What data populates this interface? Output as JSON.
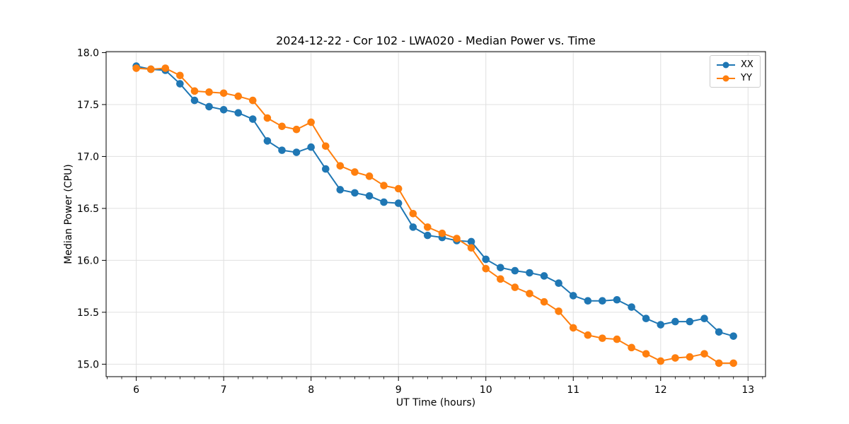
{
  "figure": {
    "background": "#ffffff",
    "axes_edge_color": "#000000",
    "grid_color": "#e0e0e0"
  },
  "chart_data": {
    "type": "line",
    "title": "2024-12-22 - Cor 102 - LWA020 - Median Power vs. Time",
    "xlabel": "UT Time (hours)",
    "ylabel": "Median Power (CPU)",
    "xlim": [
      5.655,
      13.2
    ],
    "ylim": [
      14.88,
      18.01
    ],
    "x_ticks": [
      6,
      7,
      8,
      9,
      10,
      11,
      12,
      13
    ],
    "x_tick_labels": [
      "6",
      "7",
      "8",
      "9",
      "10",
      "11",
      "12",
      "13"
    ],
    "y_ticks": [
      15.0,
      15.5,
      16.0,
      16.5,
      17.0,
      17.5,
      18.0
    ],
    "y_tick_labels": [
      "15.0",
      "15.5",
      "16.0",
      "16.5",
      "17.0",
      "17.5",
      "18.0"
    ],
    "minor_x_tick_step_hours": 0.1667,
    "grid": true,
    "legend_position": "upper right",
    "x": [
      6.0,
      6.167,
      6.333,
      6.5,
      6.667,
      6.833,
      7.0,
      7.167,
      7.333,
      7.5,
      7.667,
      7.833,
      8.0,
      8.167,
      8.333,
      8.5,
      8.667,
      8.833,
      9.0,
      9.167,
      9.333,
      9.5,
      9.667,
      9.833,
      10.0,
      10.167,
      10.333,
      10.5,
      10.667,
      10.833,
      11.0,
      11.167,
      11.333,
      11.5,
      11.667,
      11.833,
      12.0,
      12.167,
      12.333,
      12.5,
      12.667,
      12.833
    ],
    "series": [
      {
        "name": "XX",
        "color": "#1f77b4",
        "values": [
          17.87,
          17.84,
          17.83,
          17.7,
          17.54,
          17.48,
          17.45,
          17.42,
          17.36,
          17.15,
          17.06,
          17.04,
          17.09,
          16.88,
          16.68,
          16.65,
          16.62,
          16.56,
          16.55,
          16.32,
          16.24,
          16.22,
          16.19,
          16.18,
          16.01,
          15.93,
          15.9,
          15.88,
          15.85,
          15.78,
          15.66,
          15.61,
          15.61,
          15.62,
          15.55,
          15.44,
          15.38,
          15.41,
          15.41,
          15.44,
          15.31,
          15.27
        ]
      },
      {
        "name": "YY",
        "color": "#ff7f0e",
        "values": [
          17.85,
          17.84,
          17.85,
          17.78,
          17.63,
          17.62,
          17.61,
          17.58,
          17.54,
          17.37,
          17.29,
          17.26,
          17.33,
          17.1,
          16.91,
          16.85,
          16.81,
          16.72,
          16.69,
          16.45,
          16.32,
          16.26,
          16.21,
          16.12,
          15.92,
          15.82,
          15.74,
          15.68,
          15.6,
          15.51,
          15.35,
          15.28,
          15.25,
          15.24,
          15.16,
          15.1,
          15.03,
          15.06,
          15.07,
          15.1,
          15.01,
          15.01
        ]
      }
    ]
  }
}
